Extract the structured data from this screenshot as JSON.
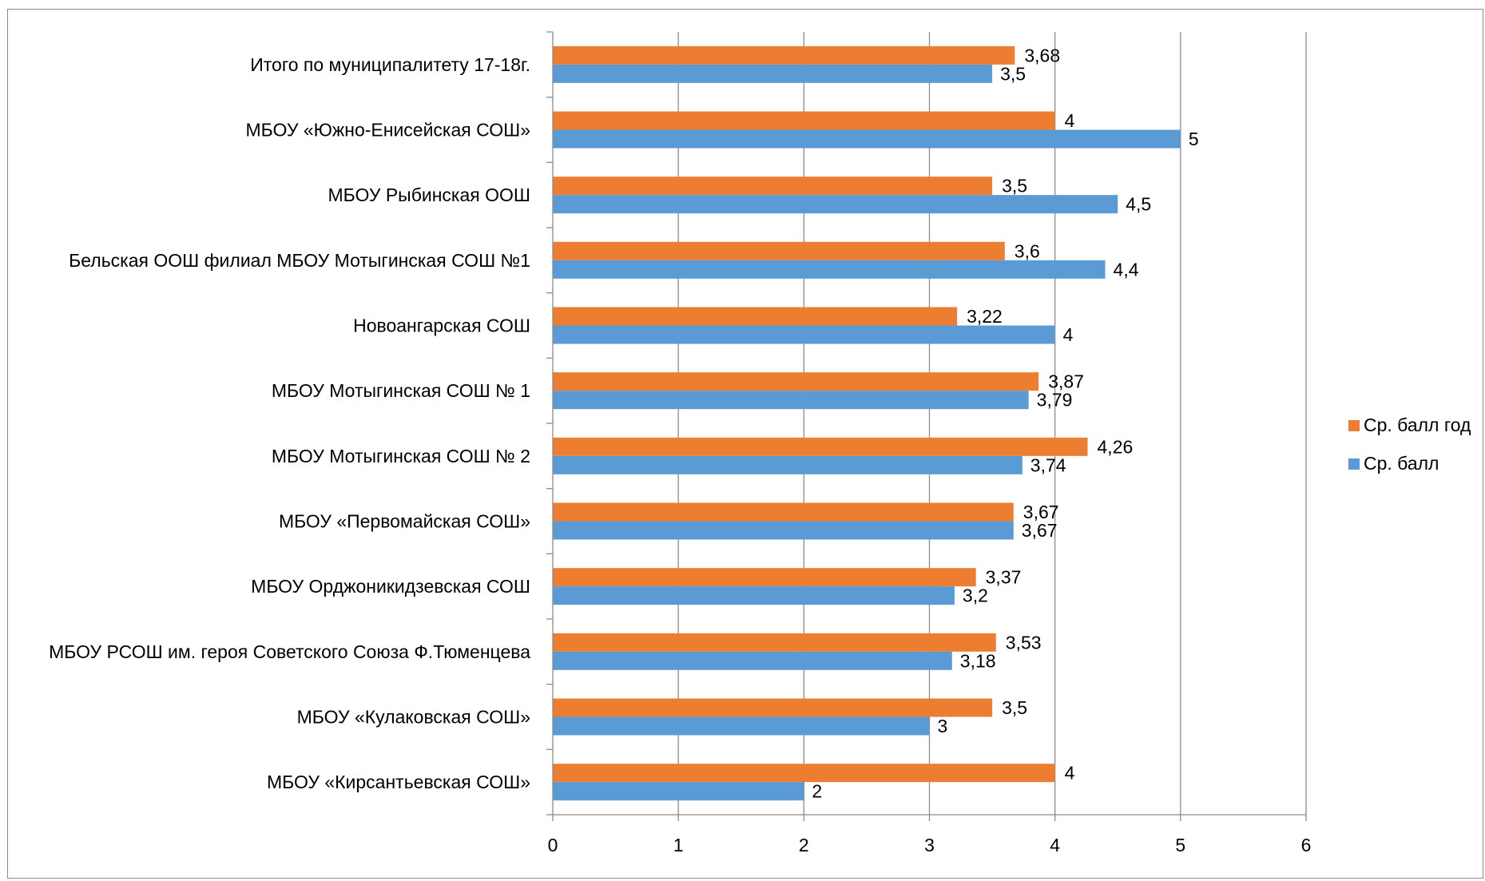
{
  "chart_data": {
    "type": "bar",
    "orientation": "horizontal",
    "categories": [
      "Итого по муниципалитету 17-18г.",
      "МБОУ «Южно-Енисейская СОШ»",
      "МБОУ Рыбинская ООШ",
      "Бельская ООШ филиал МБОУ Мотыгинская СОШ №1",
      "Новоангарская СОШ",
      "МБОУ Мотыгинская СОШ № 1",
      "МБОУ Мотыгинская СОШ  № 2",
      "МБОУ «Первомайская СОШ»",
      "МБОУ Орджоникидзевская СОШ",
      "МБОУ РСОШ им. героя Советского Союза Ф.Тюменцева",
      "МБОУ «Кулаковская СОШ»",
      "МБОУ «Кирсантьевская СОШ»"
    ],
    "series": [
      {
        "name": "Ср. балл год",
        "color": "#ED7D31",
        "values": [
          3.68,
          4,
          3.5,
          3.6,
          3.22,
          3.87,
          4.26,
          3.67,
          3.37,
          3.53,
          3.5,
          4
        ],
        "labels": [
          "3,68",
          "4",
          "3,5",
          "3,6",
          "3,22",
          "3,87",
          "4,26",
          "3,67",
          "3,37",
          "3,53",
          "3,5",
          "4"
        ]
      },
      {
        "name": "Ср. балл",
        "color": "#5B9BD5",
        "values": [
          3.5,
          5,
          4.5,
          4.4,
          4,
          3.79,
          3.74,
          3.67,
          3.2,
          3.18,
          3,
          2
        ],
        "labels": [
          "3,5",
          "5",
          "4,5",
          "4,4",
          "4",
          "3,79",
          "3,74",
          "3,67",
          "3,2",
          "3,18",
          "3",
          "2"
        ]
      }
    ],
    "xlim": [
      0,
      6
    ],
    "xticks": [
      "0",
      "1",
      "2",
      "3",
      "4",
      "5",
      "6"
    ],
    "grid": true,
    "legend_position": "right",
    "title": "",
    "xlabel": "",
    "ylabel": ""
  }
}
